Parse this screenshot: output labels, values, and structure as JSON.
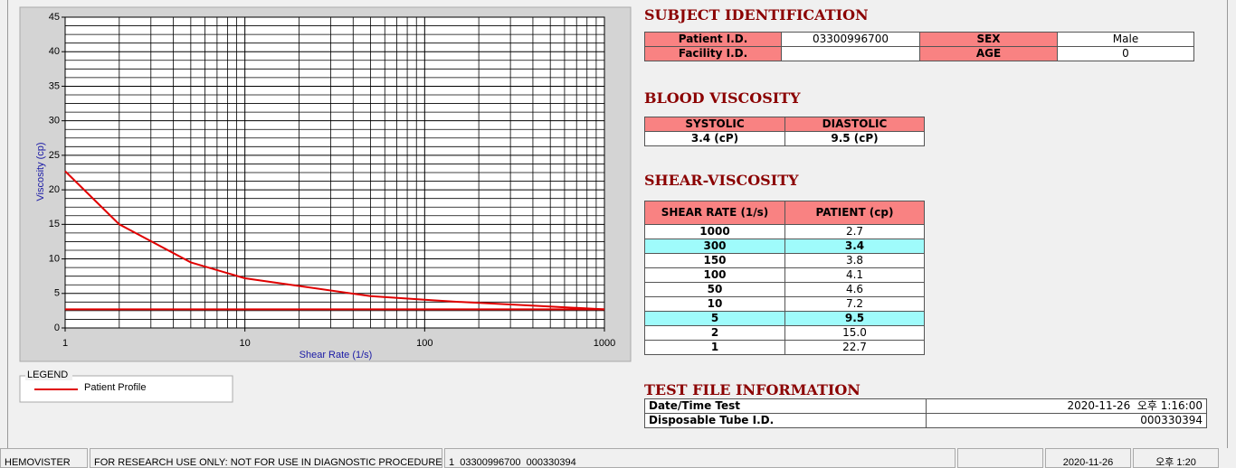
{
  "chart_data": {
    "type": "line",
    "xlabel": "Shear Rate (1/s)",
    "ylabel": "Viscosity (cp)",
    "xlim": [
      1,
      1000
    ],
    "xticks": [
      1,
      10,
      100,
      1000
    ],
    "xscale": "log",
    "ylim": [
      0,
      45
    ],
    "yticks": [
      0,
      5,
      10,
      15,
      20,
      25,
      30,
      35,
      40,
      45
    ],
    "grid": true,
    "legend_title": "LEGEND",
    "series": [
      {
        "name": "Patient Profile",
        "color": "#e00000",
        "x": [
          1,
          2,
          5,
          10,
          50,
          100,
          150,
          300,
          1000
        ],
        "values": [
          22.7,
          15.0,
          9.5,
          7.2,
          4.6,
          4.1,
          3.8,
          3.4,
          2.7
        ]
      },
      {
        "color": "#e00000",
        "x": [
          1,
          1000
        ],
        "values": [
          2.7,
          2.7
        ]
      }
    ]
  },
  "subject": {
    "title": "SUBJECT IDENTIFICATION",
    "rows": [
      [
        "Patient I.D.",
        "03300996700",
        "SEX",
        "Male"
      ],
      [
        "Facility I.D.",
        null,
        "AGE",
        "0"
      ]
    ]
  },
  "blood_viscosity": {
    "title": "BLOOD VISCOSITY",
    "headers": [
      "SYSTOLIC",
      "DIASTOLIC"
    ],
    "values": [
      "3.4 (cP)",
      "9.5 (cP)"
    ]
  },
  "shear_viscosity": {
    "title": "SHEAR-VISCOSITY",
    "headers": [
      "SHEAR RATE (1/s)",
      "PATIENT (cp)"
    ],
    "rows": [
      [
        "1000",
        "2.7"
      ],
      [
        "300",
        "3.4"
      ],
      [
        "150",
        "3.8"
      ],
      [
        "100",
        "4.1"
      ],
      [
        "50",
        "4.6"
      ],
      [
        "10",
        "7.2"
      ],
      [
        "5",
        "9.5"
      ],
      [
        "2",
        "15.0"
      ],
      [
        "1",
        "22.7"
      ]
    ],
    "highlight_rows": [
      1,
      6
    ]
  },
  "test_file": {
    "title": "TEST FILE INFORMATION",
    "rows": [
      [
        "Date/Time Test",
        "2020-11-26  오후 1:16:00"
      ],
      [
        "Disposable Tube I.D.",
        "000330394"
      ]
    ]
  },
  "status_bar": [
    "HEMOVISTER",
    "FOR RESEARCH USE ONLY: NOT FOR USE IN DIAGNOSTIC PROCEDURES",
    "1  03300996700  000330394",
    "2020-11-26",
    "오후 1:20"
  ]
}
